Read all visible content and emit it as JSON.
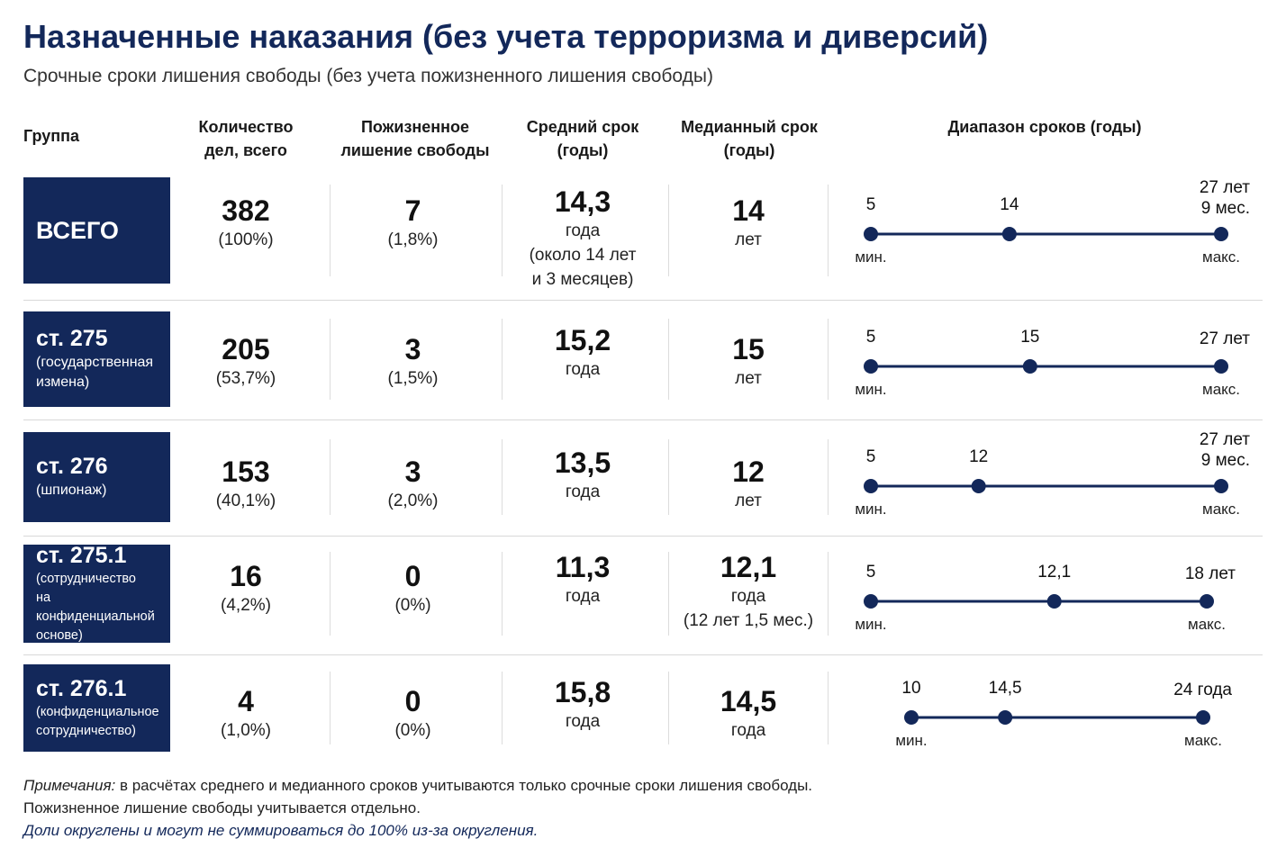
{
  "title": "Назначенные наказания (без учета терроризма и диверсий)",
  "subtitle": "Срочные сроки лишения свободы (без учета пожизненного лишения свободы)",
  "headers": {
    "group": "Группа",
    "count_1": "Количество",
    "count_2": "дел, всего",
    "life_1": "Пожизненное",
    "life_2": "лишение свободы",
    "mean_1": "Средний срок",
    "mean_2": "(годы)",
    "median_1": "Медианный срок",
    "median_2": "(годы)",
    "range": "Диапазон сроков (годы)"
  },
  "range_caps": {
    "min": "мин.",
    "max": "макс."
  },
  "rows": [
    {
      "name": "ВСЕГО",
      "desc": [],
      "count": "382",
      "count_pct": "(100%)",
      "life": "7",
      "life_pct": "(1,8%)",
      "mean": "14,3",
      "mean_sub": [
        "года",
        "(около 14 лет",
        "и 3 месяцев)"
      ],
      "median": "14",
      "median_sub": [
        "лет"
      ],
      "min_label": "5",
      "med_label": "14",
      "max_label": [
        "27 лет",
        "9 мес."
      ]
    },
    {
      "name": "ст. 275",
      "desc": [
        "(государственная",
        "измена)"
      ],
      "count": "205",
      "count_pct": "(53,7%)",
      "life": "3",
      "life_pct": "(1,5%)",
      "mean": "15,2",
      "mean_sub": [
        "года"
      ],
      "median": "15",
      "median_sub": [
        "лет"
      ],
      "min_label": "5",
      "med_label": "15",
      "max_label": [
        "27 лет"
      ]
    },
    {
      "name": "ст. 276",
      "desc": [
        "(шпионаж)"
      ],
      "count": "153",
      "count_pct": "(40,1%)",
      "life": "3",
      "life_pct": "(2,0%)",
      "mean": "13,5",
      "mean_sub": [
        "года"
      ],
      "median": "12",
      "median_sub": [
        "лет"
      ],
      "min_label": "5",
      "med_label": "12",
      "max_label": [
        "27 лет",
        "9 мес."
      ]
    },
    {
      "name": "ст. 275.1",
      "desc": [
        "(сотрудничество",
        "на конфиденциальной",
        "основе)"
      ],
      "count": "16",
      "count_pct": "(4,2%)",
      "life": "0",
      "life_pct": "(0%)",
      "mean": "11,3",
      "mean_sub": [
        "года"
      ],
      "median": "12,1",
      "median_sub": [
        "года",
        "(12 лет 1,5 мес.)"
      ],
      "min_label": "5",
      "med_label": "12,1",
      "max_label": [
        "18 лет"
      ]
    },
    {
      "name": "ст. 276.1",
      "desc": [
        "(конфиденциальное",
        "сотрудничество)"
      ],
      "count": "4",
      "count_pct": "(1,0%)",
      "life": "0",
      "life_pct": "(0%)",
      "mean": "15,8",
      "mean_sub": [
        "года"
      ],
      "median": "14,5",
      "median_sub": [
        "года"
      ],
      "min_label": "10",
      "med_label": "14,5",
      "max_label": [
        "24 года"
      ]
    }
  ],
  "chart_data": {
    "type": "table",
    "title": "Назначенные наказания (без учета терроризма и диверсий)",
    "subtitle": "Срочные сроки лишения свободы (без учета пожизненного лишения свободы)",
    "columns": [
      "Группа",
      "Количество дел, всего",
      "Пожизненное лишение свободы",
      "Средний срок (годы)",
      "Медианный срок (годы)",
      "Диапазон сроков (годы)"
    ],
    "series": [
      {
        "name": "ВСЕГО",
        "count": 382,
        "count_pct": 100,
        "life": 7,
        "life_pct": 1.8,
        "mean": 14.3,
        "median": 14,
        "min": 5,
        "max": 27.75
      },
      {
        "name": "ст. 275",
        "count": 205,
        "count_pct": 53.7,
        "life": 3,
        "life_pct": 1.5,
        "mean": 15.2,
        "median": 15,
        "min": 5,
        "max": 27
      },
      {
        "name": "ст. 276",
        "count": 153,
        "count_pct": 40.1,
        "life": 3,
        "life_pct": 2.0,
        "mean": 13.5,
        "median": 12,
        "min": 5,
        "max": 27.75
      },
      {
        "name": "ст. 275.1",
        "count": 16,
        "count_pct": 4.2,
        "life": 0,
        "life_pct": 0,
        "mean": 11.3,
        "median": 12.1,
        "min": 5,
        "max": 18
      },
      {
        "name": "ст. 276.1",
        "count": 4,
        "count_pct": 1.0,
        "life": 0,
        "life_pct": 0,
        "mean": 15.8,
        "median": 14.5,
        "min": 10,
        "max": 24
      }
    ]
  },
  "notes": {
    "lead": "Примечания:",
    "line1": " в расчётах среднего и медианного сроков учитываются только срочные сроки лишения свободы.",
    "line2": "Пожизненное лишение свободы учитывается отдельно.",
    "line3": "Доли округлены и могут не суммироваться до 100% из-за округления."
  },
  "colors": {
    "navy": "#13285a",
    "separator": "#d8d8d8"
  }
}
